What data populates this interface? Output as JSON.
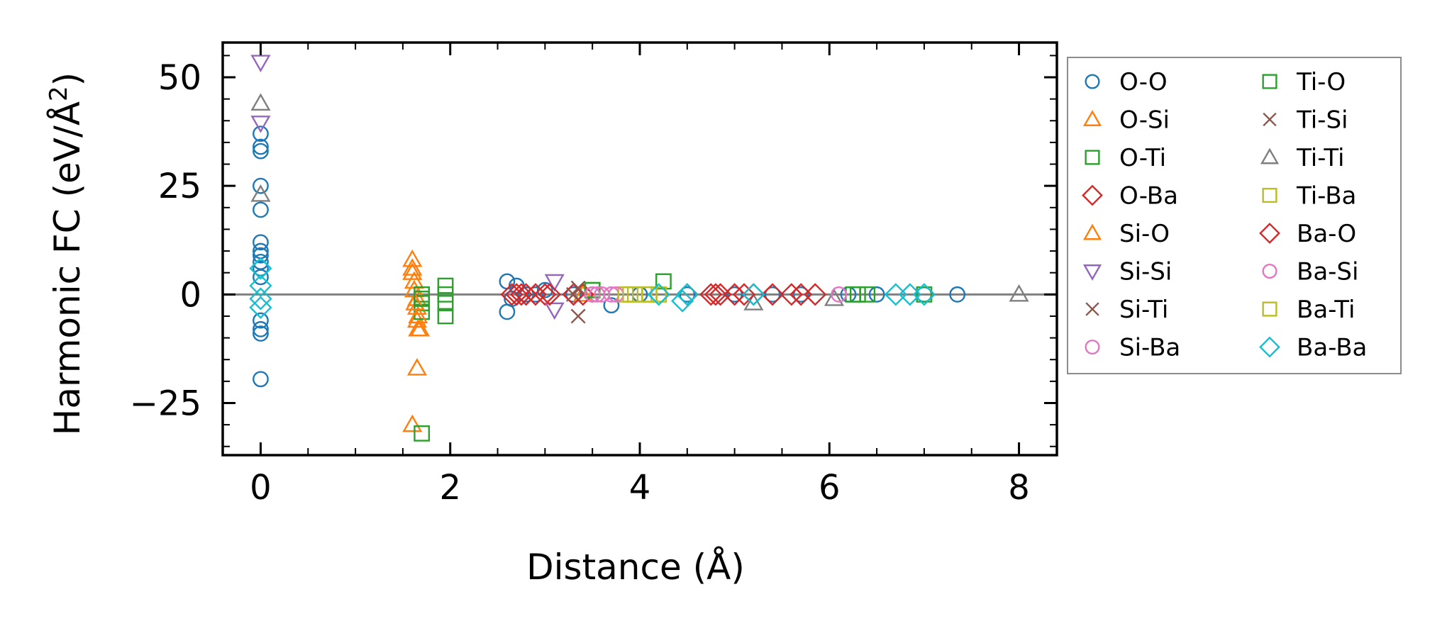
{
  "chart_data": {
    "type": "scatter",
    "title": "",
    "xlabel": "Distance (Å)",
    "ylabel_main": "Harmonic FC (eV/Å",
    "ylabel_sup": "2",
    "ylabel_close": ")",
    "xlim": [
      -0.4,
      8.4
    ],
    "ylim": [
      -37,
      58
    ],
    "xticks": [
      0,
      2,
      4,
      6,
      8
    ],
    "xtick_labels": [
      "0",
      "2",
      "4",
      "6",
      "8"
    ],
    "yticks": [
      -25,
      0,
      25,
      50
    ],
    "ytick_labels": [
      "−25",
      "0",
      "25",
      "50"
    ],
    "grid": false,
    "legend_position": "right, outside axes",
    "series": [
      {
        "name": "O-O",
        "marker": "circle",
        "color": "#1f77b4",
        "x": [
          0,
          0,
          0,
          0,
          0,
          0,
          0,
          0,
          0,
          0,
          0,
          0,
          0,
          0,
          0,
          2.6,
          2.6,
          2.65,
          2.7,
          2.8,
          2.9,
          3.0,
          3.3,
          3.5,
          3.7,
          4.0,
          4.5,
          5.0,
          5.4,
          5.7,
          6.2,
          6.5,
          7.0,
          7.35
        ],
        "y": [
          37,
          34,
          33,
          25,
          19.5,
          12,
          10,
          9,
          7.5,
          6,
          4,
          -6,
          -8,
          -9,
          -19.5,
          3,
          -4,
          -1,
          2,
          0,
          0,
          1,
          0,
          0,
          -2.5,
          0,
          0,
          0,
          0,
          0,
          0,
          0,
          0,
          0
        ]
      },
      {
        "name": "O-Si",
        "marker": "triangle-up",
        "color": "#ff7f0e",
        "x": [
          1.6,
          1.6,
          1.62,
          1.62,
          1.65,
          1.65,
          1.65,
          1.68,
          1.6,
          1.65,
          3.4
        ],
        "y": [
          8,
          5,
          3,
          1,
          -1,
          -3,
          -6,
          -8,
          -30,
          -17,
          0
        ]
      },
      {
        "name": "O-Ti",
        "marker": "square",
        "color": "#2ca02c",
        "x": [
          1.7,
          1.7,
          1.7,
          1.95,
          1.95,
          1.95,
          1.95,
          1.7,
          3.5,
          4.25,
          6.3
        ],
        "y": [
          0,
          -4,
          -32,
          2,
          0,
          -2,
          -5,
          -2,
          1,
          3,
          0
        ]
      },
      {
        "name": "O-Ba",
        "marker": "diamond",
        "color": "#d62728",
        "x": [
          2.7,
          2.8,
          3.0,
          3.3,
          3.4,
          4.8,
          5.0,
          5.2,
          5.6,
          5.85
        ],
        "y": [
          0,
          0,
          0,
          0,
          0,
          0,
          0,
          0,
          0,
          0
        ]
      },
      {
        "name": "Si-O",
        "marker": "triangle-up",
        "color": "#ff7f0e",
        "x": [
          1.6,
          1.63,
          1.66,
          1.66
        ],
        "y": [
          6,
          -2,
          -5,
          -8
        ]
      },
      {
        "name": "Si-Si",
        "marker": "triangle-down",
        "color": "#9467bd",
        "x": [
          0,
          0,
          3.1,
          3.1
        ],
        "y": [
          53.5,
          39.5,
          3,
          -3.5
        ]
      },
      {
        "name": "Si-Ti",
        "marker": "x",
        "color": "#8c564b",
        "x": [
          3.35,
          3.35
        ],
        "y": [
          1.5,
          -5
        ]
      },
      {
        "name": "Si-Ba",
        "marker": "circle",
        "color": "#e377c2",
        "x": [
          3.55,
          3.7
        ],
        "y": [
          0,
          0
        ]
      },
      {
        "name": "Ti-O",
        "marker": "square",
        "color": "#2ca02c",
        "x": [
          1.7,
          3.5,
          6.25,
          6.4,
          7.0
        ],
        "y": [
          -1,
          1,
          0,
          0,
          0
        ]
      },
      {
        "name": "Ti-Si",
        "marker": "x",
        "color": "#8c564b",
        "x": [
          3.3
        ],
        "y": [
          0
        ]
      },
      {
        "name": "Ti-Ti",
        "marker": "triangle-up",
        "color": "#7f7f7f",
        "x": [
          0,
          0,
          5.2,
          6.05,
          8.0
        ],
        "y": [
          44,
          23,
          -2,
          -1,
          0
        ]
      },
      {
        "name": "Ti-Ba",
        "marker": "square",
        "color": "#bcbd22",
        "x": [
          3.85,
          3.95,
          4.1,
          4.2
        ],
        "y": [
          0,
          0,
          0,
          0
        ]
      },
      {
        "name": "Ba-O",
        "marker": "diamond",
        "color": "#d62728",
        "x": [
          2.65,
          2.75,
          2.9,
          3.05,
          4.5,
          4.75,
          4.85,
          5.1,
          5.4,
          5.7
        ],
        "y": [
          0,
          0,
          0,
          0,
          0,
          0,
          0,
          0,
          0,
          0
        ]
      },
      {
        "name": "Ba-Si",
        "marker": "circle",
        "color": "#e377c2",
        "x": [
          3.5,
          3.6,
          3.75,
          6.1
        ],
        "y": [
          0,
          0,
          0,
          0
        ]
      },
      {
        "name": "Ba-Ti",
        "marker": "square",
        "color": "#bcbd22",
        "x": [
          3.9,
          4.1,
          4.2
        ],
        "y": [
          0,
          0,
          0
        ]
      },
      {
        "name": "Ba-Ba",
        "marker": "diamond",
        "color": "#17becf",
        "x": [
          0,
          0,
          0,
          0,
          4.2,
          4.45,
          4.5,
          5.2,
          6.7,
          6.85,
          7.0
        ],
        "y": [
          6,
          2,
          -1,
          -3,
          0,
          -1.5,
          0,
          0,
          0,
          0,
          0
        ]
      }
    ]
  }
}
